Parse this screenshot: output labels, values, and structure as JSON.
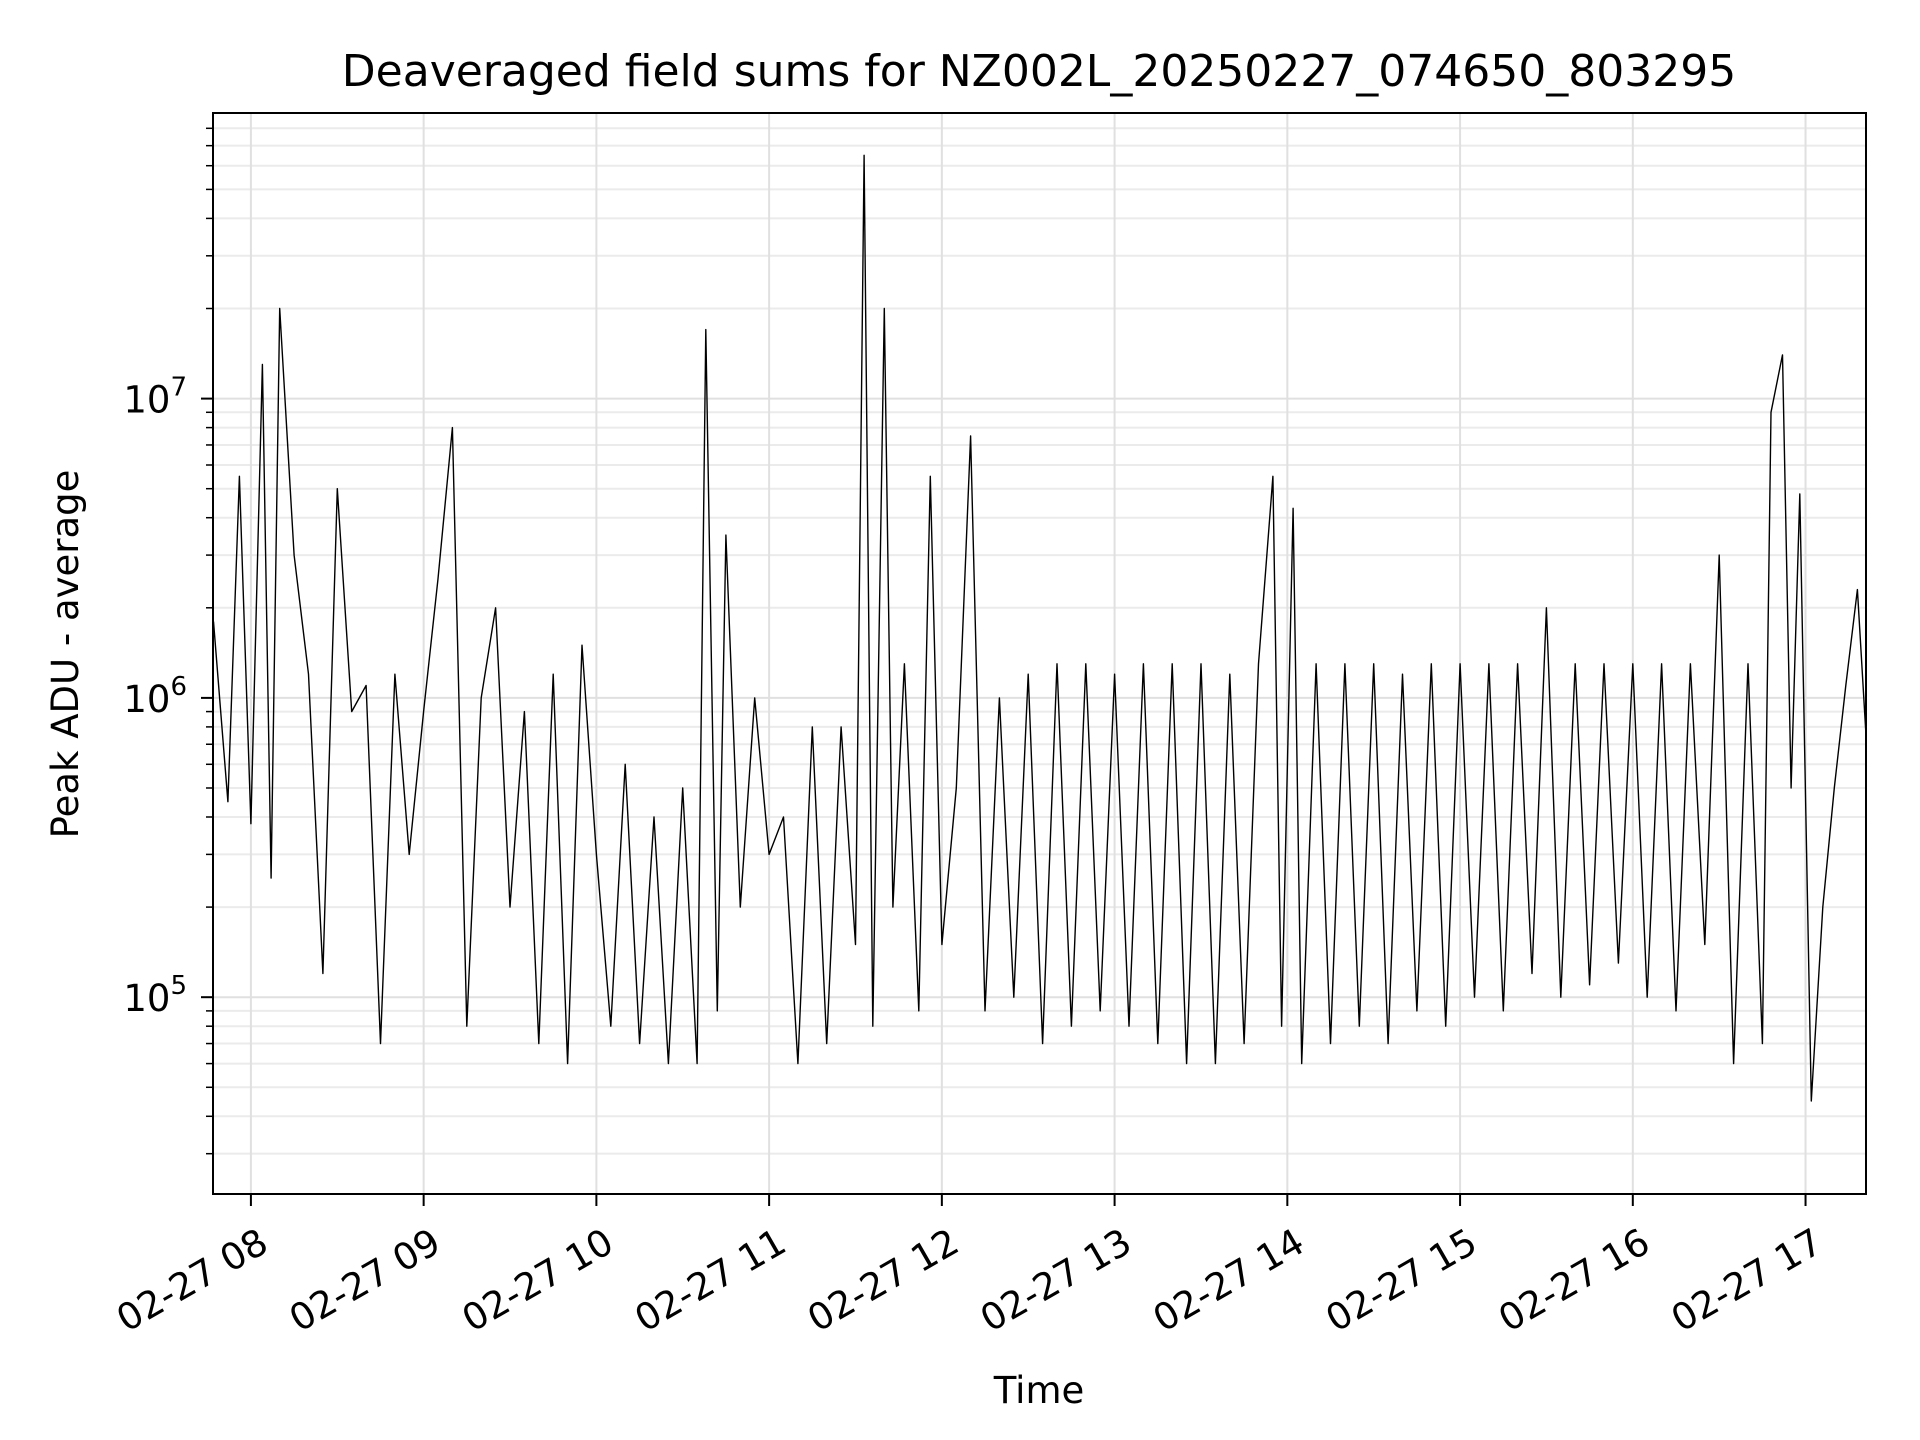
{
  "chart_data": {
    "type": "line",
    "title": "Deaveraged field sums for NZ002L_20250227_074650_803295",
    "xlabel": "Time",
    "ylabel": "Peak ADU - average",
    "yscale": "log",
    "ylim": [
      22000,
      90000000
    ],
    "xlim": [
      "2025-02-27 07:46:50",
      "2025-02-27 17:21:00"
    ],
    "grid": "major and minor",
    "x_ticks": [
      {
        "time": "2025-02-27 08:00",
        "label": "02-27 08"
      },
      {
        "time": "2025-02-27 09:00",
        "label": "02-27 09"
      },
      {
        "time": "2025-02-27 10:00",
        "label": "02-27 10"
      },
      {
        "time": "2025-02-27 11:00",
        "label": "02-27 11"
      },
      {
        "time": "2025-02-27 12:00",
        "label": "02-27 12"
      },
      {
        "time": "2025-02-27 13:00",
        "label": "02-27 13"
      },
      {
        "time": "2025-02-27 14:00",
        "label": "02-27 14"
      },
      {
        "time": "2025-02-27 15:00",
        "label": "02-27 15"
      },
      {
        "time": "2025-02-27 16:00",
        "label": "02-27 16"
      },
      {
        "time": "2025-02-27 17:00",
        "label": "02-27 17"
      }
    ],
    "y_ticks": [
      {
        "value": 100000,
        "base": "10",
        "exp": "5"
      },
      {
        "value": 1000000,
        "base": "10",
        "exp": "6"
      },
      {
        "value": 10000000,
        "base": "10",
        "exp": "7"
      }
    ],
    "line_color": "#000000",
    "series": [
      {
        "x": [
          "2025-02-27 07:47",
          "2025-02-27 07:52",
          "2025-02-27 07:56",
          "2025-02-27 08:00",
          "2025-02-27 08:04",
          "2025-02-27 08:07",
          "2025-02-27 08:10",
          "2025-02-27 08:15",
          "2025-02-27 08:20",
          "2025-02-27 08:25",
          "2025-02-27 08:30",
          "2025-02-27 08:35",
          "2025-02-27 08:40",
          "2025-02-27 08:45",
          "2025-02-27 08:50",
          "2025-02-27 08:55",
          "2025-02-27 09:00",
          "2025-02-27 09:05",
          "2025-02-27 09:10",
          "2025-02-27 09:15",
          "2025-02-27 09:20",
          "2025-02-27 09:25",
          "2025-02-27 09:30",
          "2025-02-27 09:35",
          "2025-02-27 09:40",
          "2025-02-27 09:45",
          "2025-02-27 09:50",
          "2025-02-27 09:55",
          "2025-02-27 10:00",
          "2025-02-27 10:05",
          "2025-02-27 10:10",
          "2025-02-27 10:15",
          "2025-02-27 10:20",
          "2025-02-27 10:25",
          "2025-02-27 10:30",
          "2025-02-27 10:35",
          "2025-02-27 10:38",
          "2025-02-27 10:42",
          "2025-02-27 10:45",
          "2025-02-27 10:50",
          "2025-02-27 10:55",
          "2025-02-27 11:00",
          "2025-02-27 11:05",
          "2025-02-27 11:10",
          "2025-02-27 11:15",
          "2025-02-27 11:20",
          "2025-02-27 11:25",
          "2025-02-27 11:30",
          "2025-02-27 11:33",
          "2025-02-27 11:36",
          "2025-02-27 11:40",
          "2025-02-27 11:43",
          "2025-02-27 11:47",
          "2025-02-27 11:52",
          "2025-02-27 11:56",
          "2025-02-27 12:00",
          "2025-02-27 12:05",
          "2025-02-27 12:10",
          "2025-02-27 12:15",
          "2025-02-27 12:20",
          "2025-02-27 12:25",
          "2025-02-27 12:30",
          "2025-02-27 12:35",
          "2025-02-27 12:40",
          "2025-02-27 12:45",
          "2025-02-27 12:50",
          "2025-02-27 12:55",
          "2025-02-27 13:00",
          "2025-02-27 13:05",
          "2025-02-27 13:10",
          "2025-02-27 13:15",
          "2025-02-27 13:20",
          "2025-02-27 13:25",
          "2025-02-27 13:30",
          "2025-02-27 13:35",
          "2025-02-27 13:40",
          "2025-02-27 13:45",
          "2025-02-27 13:50",
          "2025-02-27 13:55",
          "2025-02-27 13:58",
          "2025-02-27 14:02",
          "2025-02-27 14:05",
          "2025-02-27 14:10",
          "2025-02-27 14:15",
          "2025-02-27 14:20",
          "2025-02-27 14:25",
          "2025-02-27 14:30",
          "2025-02-27 14:35",
          "2025-02-27 14:40",
          "2025-02-27 14:45",
          "2025-02-27 14:50",
          "2025-02-27 14:55",
          "2025-02-27 15:00",
          "2025-02-27 15:05",
          "2025-02-27 15:10",
          "2025-02-27 15:15",
          "2025-02-27 15:20",
          "2025-02-27 15:25",
          "2025-02-27 15:30",
          "2025-02-27 15:35",
          "2025-02-27 15:40",
          "2025-02-27 15:45",
          "2025-02-27 15:50",
          "2025-02-27 15:55",
          "2025-02-27 16:00",
          "2025-02-27 16:05",
          "2025-02-27 16:10",
          "2025-02-27 16:15",
          "2025-02-27 16:20",
          "2025-02-27 16:25",
          "2025-02-27 16:30",
          "2025-02-27 16:35",
          "2025-02-27 16:40",
          "2025-02-27 16:45",
          "2025-02-27 16:48",
          "2025-02-27 16:52",
          "2025-02-27 16:55",
          "2025-02-27 16:58",
          "2025-02-27 17:02",
          "2025-02-27 17:06",
          "2025-02-27 17:10",
          "2025-02-27 17:14",
          "2025-02-27 17:18",
          "2025-02-27 17:21"
        ],
        "y": [
          1800000,
          450000,
          5500000,
          380000,
          13000000,
          250000,
          20000000,
          3000000,
          1200000,
          120000,
          5000000,
          900000,
          1100000,
          70000,
          1200000,
          300000,
          900000,
          2500000,
          8000000,
          80000,
          1000000,
          2000000,
          200000,
          900000,
          70000,
          1200000,
          60000,
          1500000,
          300000,
          80000,
          600000,
          70000,
          400000,
          60000,
          500000,
          60000,
          17000000,
          90000,
          3500000,
          200000,
          1000000,
          300000,
          400000,
          60000,
          800000,
          70000,
          800000,
          150000,
          65000000,
          80000,
          20000000,
          200000,
          1300000,
          90000,
          5500000,
          150000,
          500000,
          7500000,
          90000,
          1000000,
          100000,
          1200000,
          70000,
          1300000,
          80000,
          1300000,
          90000,
          1200000,
          80000,
          1300000,
          70000,
          1300000,
          60000,
          1300000,
          60000,
          1200000,
          70000,
          1300000,
          5500000,
          80000,
          4300000,
          60000,
          1300000,
          70000,
          1300000,
          80000,
          1300000,
          70000,
          1200000,
          90000,
          1300000,
          80000,
          1300000,
          100000,
          1300000,
          90000,
          1300000,
          120000,
          2000000,
          100000,
          1300000,
          110000,
          1300000,
          130000,
          1300000,
          100000,
          1300000,
          90000,
          1300000,
          150000,
          3000000,
          60000,
          1300000,
          70000,
          9000000,
          14000000,
          500000,
          4800000,
          45000,
          200000,
          500000,
          1100000,
          2300000,
          750000
        ]
      }
    ]
  }
}
